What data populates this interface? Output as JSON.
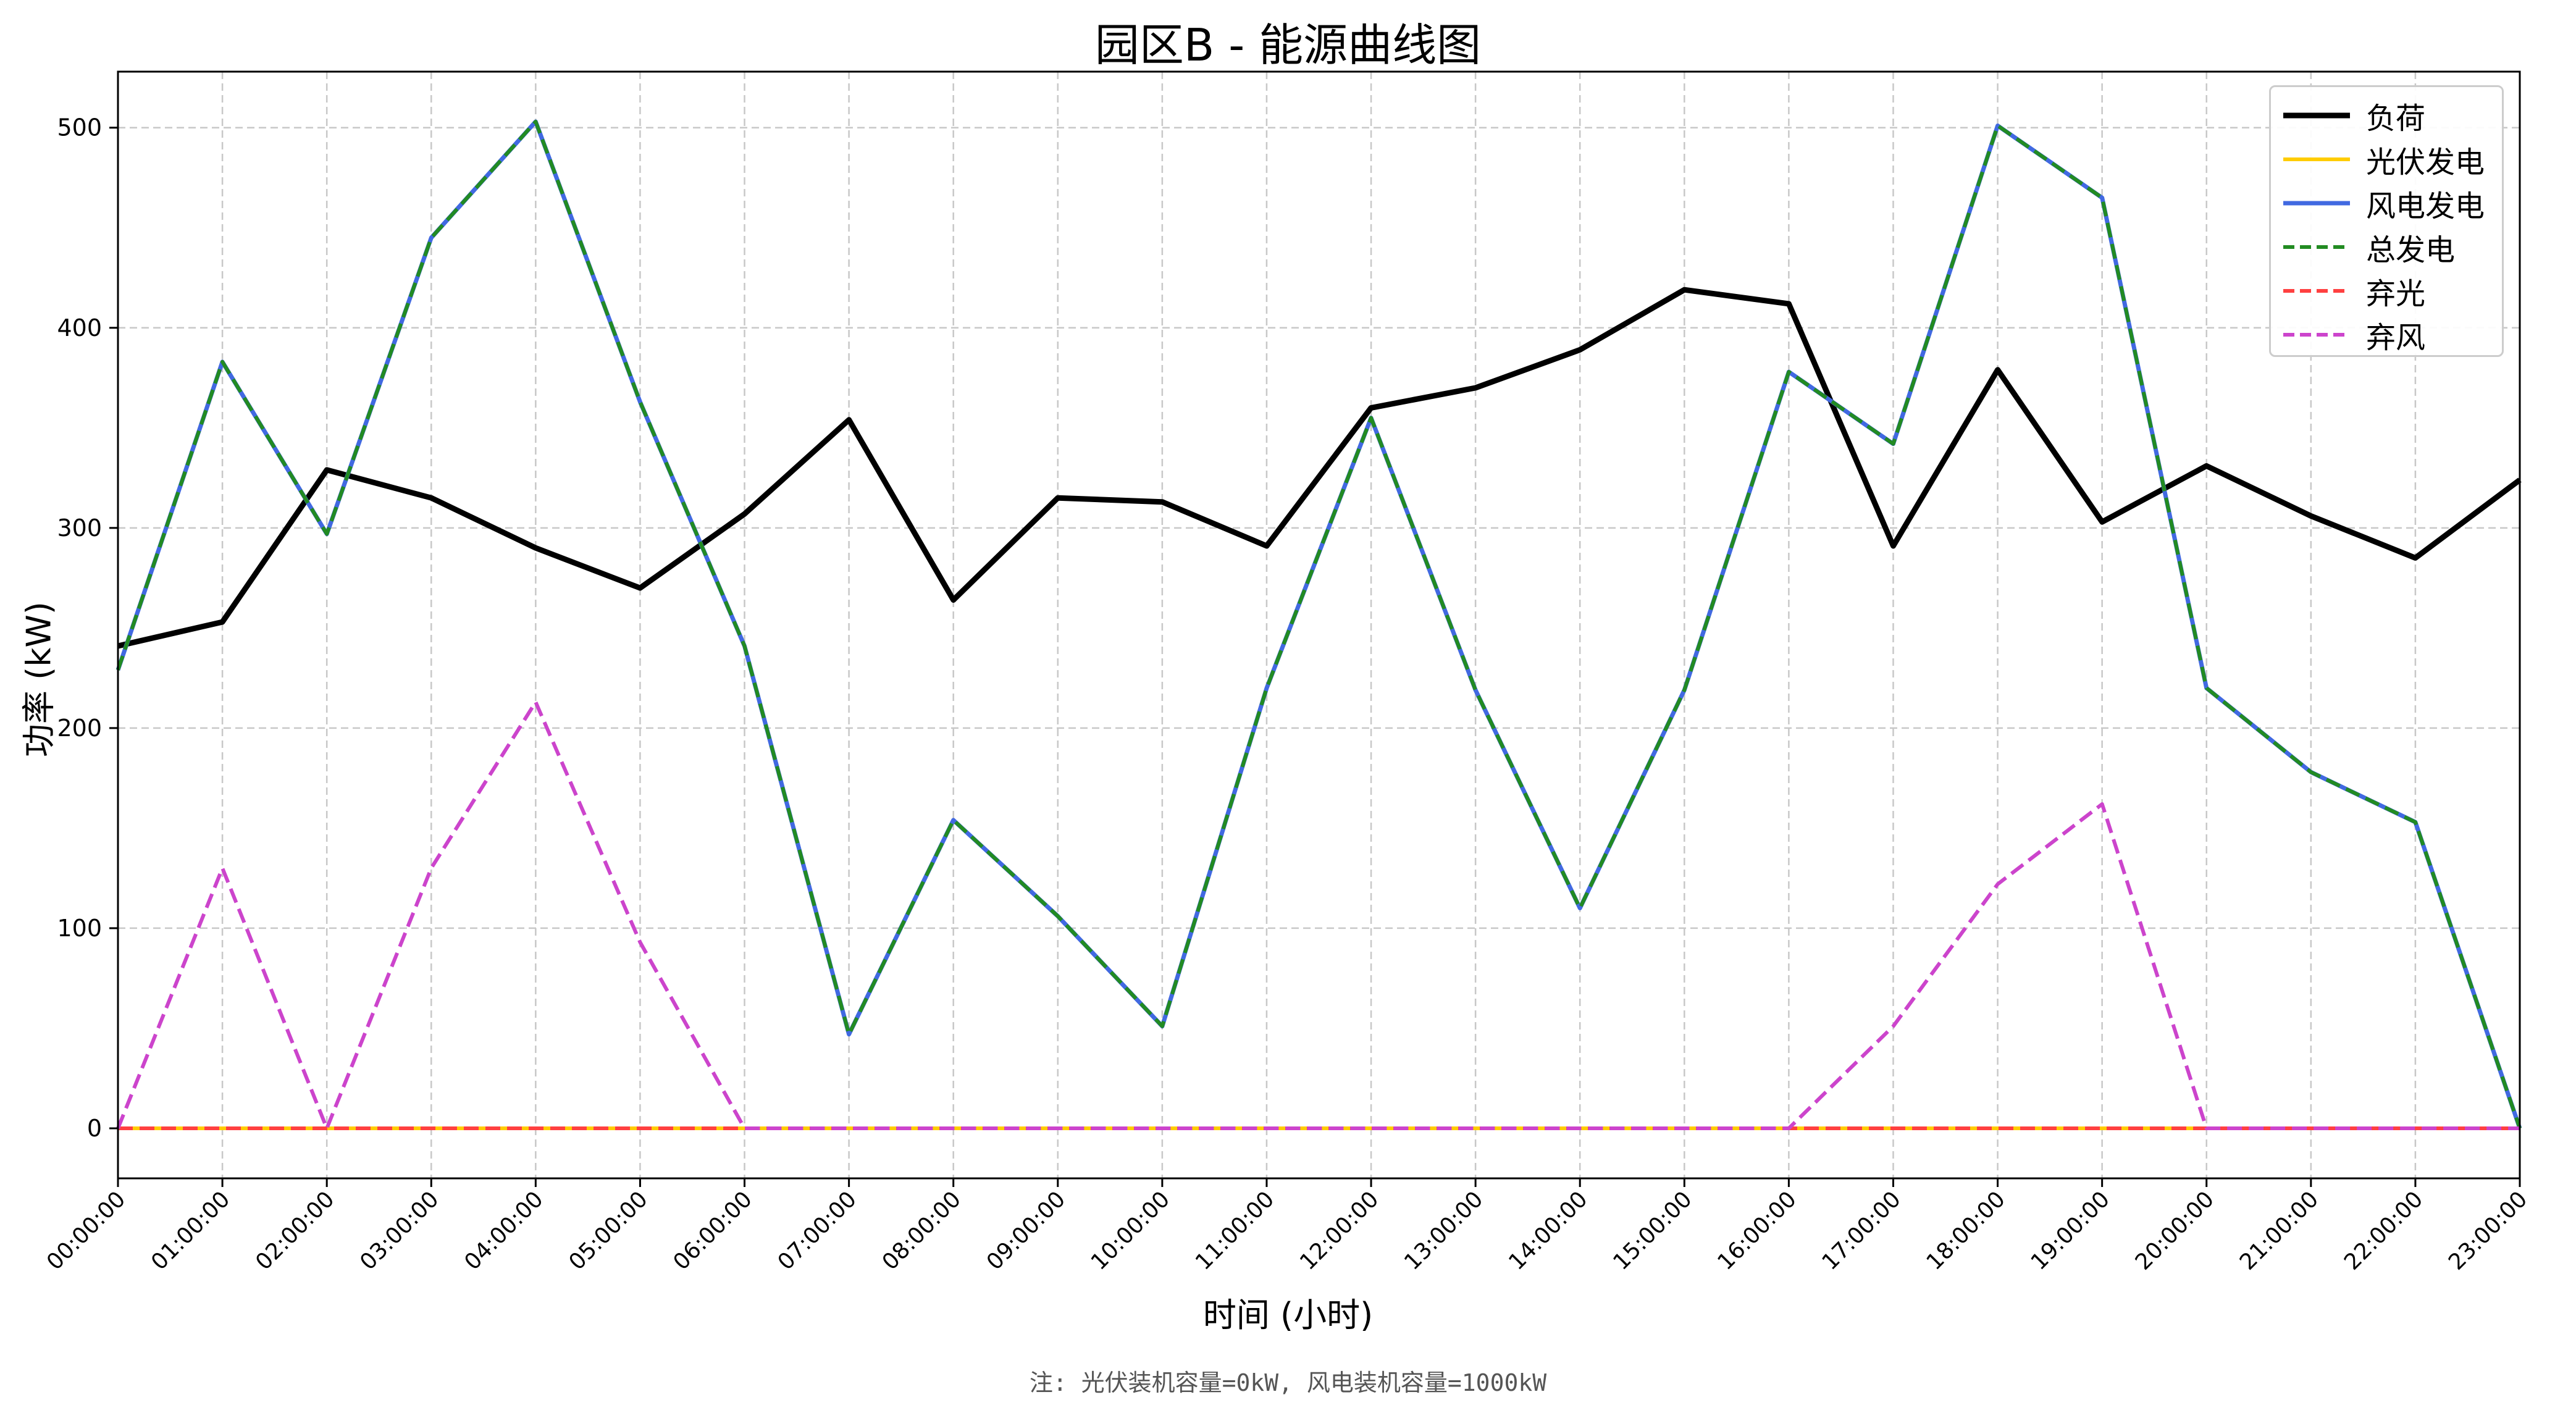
{
  "chart_data": {
    "type": "line",
    "title": "园区B - 能源曲线图",
    "xlabel": "时间 (小时)",
    "ylabel": "功率 (kW)",
    "note": "注: 光伏装机容量=0kW, 风电装机容量=1000kW",
    "categories": [
      "00:00:00",
      "01:00:00",
      "02:00:00",
      "03:00:00",
      "04:00:00",
      "05:00:00",
      "06:00:00",
      "07:00:00",
      "08:00:00",
      "09:00:00",
      "10:00:00",
      "11:00:00",
      "12:00:00",
      "13:00:00",
      "14:00:00",
      "15:00:00",
      "16:00:00",
      "17:00:00",
      "18:00:00",
      "19:00:00",
      "20:00:00",
      "21:00:00",
      "22:00:00",
      "23:00:00"
    ],
    "ylim": [
      -25,
      528
    ],
    "yticks": [
      0,
      100,
      200,
      300,
      400,
      500
    ],
    "grid": true,
    "legend_position": "top-right",
    "series": [
      {
        "name": "负荷",
        "color": "#000000",
        "style": "solid",
        "width": 9,
        "values": [
          241,
          253,
          329,
          315,
          290,
          270,
          307,
          354,
          264,
          315,
          313,
          291,
          360,
          370,
          389,
          419,
          412,
          291,
          379,
          303,
          331,
          306,
          285,
          324
        ]
      },
      {
        "name": "光伏发电",
        "color": "#FFCC00",
        "style": "solid",
        "width": 6,
        "values": [
          0,
          0,
          0,
          0,
          0,
          0,
          0,
          0,
          0,
          0,
          0,
          0,
          0,
          0,
          0,
          0,
          0,
          0,
          0,
          0,
          0,
          0,
          0,
          0
        ]
      },
      {
        "name": "风电发电",
        "color": "#4169E1",
        "style": "solid",
        "width": 7,
        "values": [
          229,
          383,
          297,
          445,
          503,
          363,
          241,
          47,
          154,
          106,
          51,
          220,
          355,
          219,
          110,
          219,
          378,
          342,
          501,
          465,
          220,
          178,
          153,
          0
        ]
      },
      {
        "name": "总发电",
        "color": "#228B22",
        "style": "dashed",
        "width": 6,
        "values": [
          229,
          383,
          297,
          445,
          503,
          363,
          241,
          47,
          154,
          106,
          51,
          220,
          355,
          219,
          110,
          219,
          378,
          342,
          501,
          465,
          220,
          178,
          153,
          0
        ]
      },
      {
        "name": "弃光",
        "color": "#FF4040",
        "style": "dashed",
        "width": 6,
        "values": [
          0,
          0,
          0,
          0,
          0,
          0,
          0,
          0,
          0,
          0,
          0,
          0,
          0,
          0,
          0,
          0,
          0,
          0,
          0,
          0,
          0,
          0,
          0,
          0
        ]
      },
      {
        "name": "弃风",
        "color": "#CC44CC",
        "style": "dashed",
        "width": 6,
        "values": [
          0,
          130,
          0,
          130,
          213,
          93,
          0,
          0,
          0,
          0,
          0,
          0,
          0,
          0,
          0,
          0,
          0,
          51,
          122,
          162,
          0,
          0,
          0,
          0
        ]
      }
    ]
  }
}
